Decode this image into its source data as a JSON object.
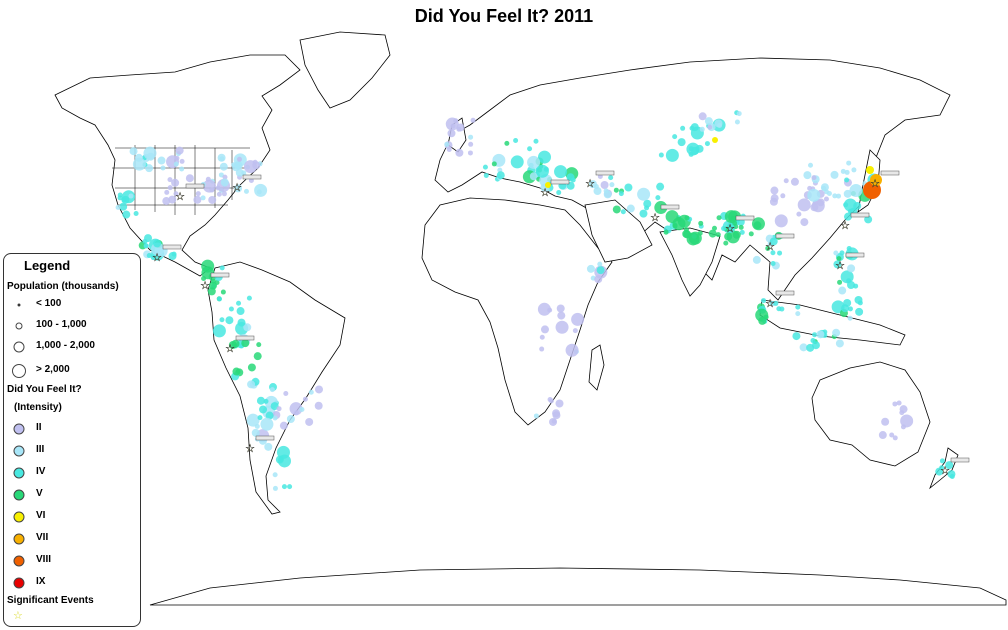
{
  "title": "Did You Feel It? 2011",
  "legend": {
    "title": "Legend",
    "population_heading": "Population (thousands)",
    "population_classes": [
      "< 100",
      "100 - 1,000",
      "1,000 - 2,000",
      "> 2,000"
    ],
    "intensity_heading": "Did You Feel It?",
    "intensity_subheading": "(Intensity)",
    "intensity_classes": [
      {
        "label": "II",
        "color": "#c0c0f0"
      },
      {
        "label": "III",
        "color": "#a8e6f8"
      },
      {
        "label": "IV",
        "color": "#48e8e0"
      },
      {
        "label": "V",
        "color": "#28d878"
      },
      {
        "label": "VI",
        "color": "#f8f000"
      },
      {
        "label": "VII",
        "color": "#f8b000"
      },
      {
        "label": "VIII",
        "color": "#f06000"
      },
      {
        "label": "IX",
        "color": "#e80000"
      }
    ],
    "significant_events_heading": "Significant Events",
    "significant_event_symbol": "star-icon"
  },
  "colors": {
    "land_outline": "#000000",
    "land_fill": "#ffffff",
    "background": "#ffffff",
    "event_star": "#d8d820"
  }
}
